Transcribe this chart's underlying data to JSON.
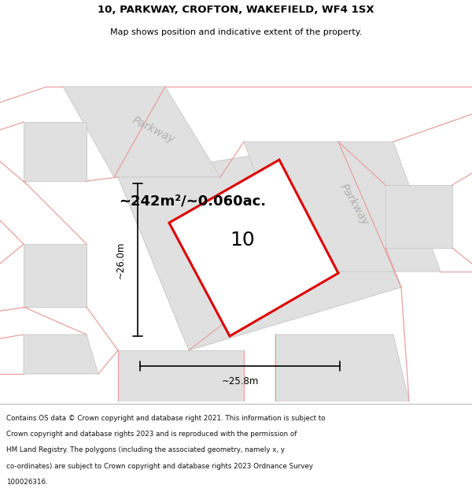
{
  "title_line1": "10, PARKWAY, CROFTON, WAKEFIELD, WF4 1SX",
  "title_line2": "Map shows position and indicative extent of the property.",
  "area_label": "~242m²/~0.060ac.",
  "property_number": "10",
  "dim_height": "~26.0m",
  "dim_width": "~25.8m",
  "road_label_top": "Parkway",
  "road_label_right": "Parkway",
  "footer_lines": [
    "Contains OS data © Crown copyright and database right 2021. This information is subject to",
    "Crown copyright and database rights 2023 and is reproduced with the permission of",
    "HM Land Registry. The polygons (including the associated geometry, namely x, y",
    "co-ordinates) are subject to Crown copyright and database rights 2023 Ordnance Survey",
    "100026316."
  ],
  "bg_color": "#ffffff",
  "property_edge": "#dd0000",
  "pink_line_color": "#e8a0a0",
  "gray_fill_color": "#e0e0e0",
  "gray_edge_color": "#c8c8c8"
}
